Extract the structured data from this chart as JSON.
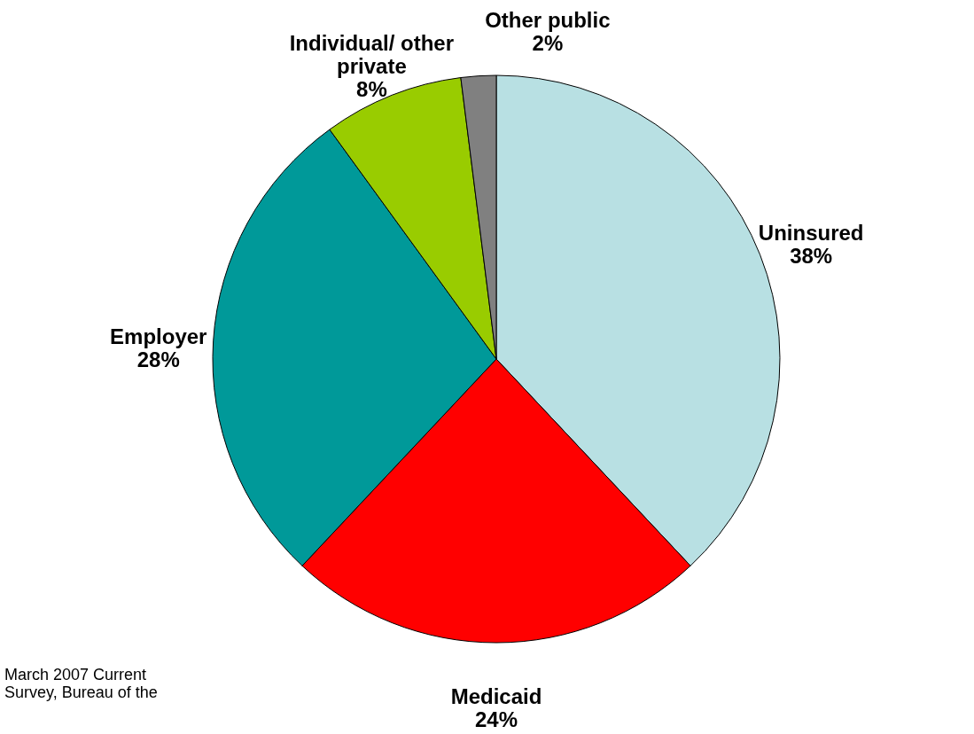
{
  "chart_data": {
    "type": "pie",
    "categories": [
      "Uninsured",
      "Medicaid",
      "Employer",
      "Individual/ other private",
      "Other public"
    ],
    "values": [
      38,
      24,
      28,
      8,
      2
    ],
    "value_labels": [
      "38%",
      "24%",
      "28%",
      "8%",
      "2%"
    ],
    "colors": [
      "#b8e0e3",
      "#ff0000",
      "#009999",
      "#99cc00",
      "#808080"
    ],
    "annotations": [
      "March 2007 Current Survey, Bureau of the"
    ]
  }
}
